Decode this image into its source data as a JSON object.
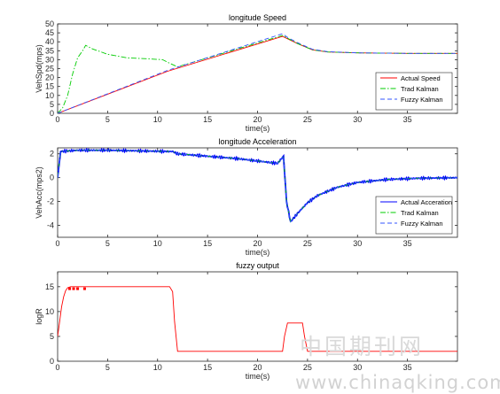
{
  "chart_data": [
    {
      "type": "line",
      "title": "longitude Speed",
      "xlabel": "time(s)",
      "ylabel": "VehSpd(mps)",
      "xlim": [
        0,
        40
      ],
      "ylim": [
        0,
        50
      ],
      "xticks": [
        0,
        5,
        10,
        15,
        20,
        25,
        30,
        35
      ],
      "yticks": [
        0,
        5,
        10,
        15,
        20,
        25,
        30,
        35,
        40,
        45,
        50
      ],
      "legend_position": "bottom-right",
      "grid": false,
      "series": [
        {
          "name": "Actual Speed",
          "color": "#ff0000",
          "style": "solid",
          "x": [
            0,
            11,
            22.5,
            24,
            25.5,
            27,
            30,
            35,
            40
          ],
          "y": [
            0,
            23.5,
            43,
            39,
            35.5,
            34.3,
            33.8,
            33.5,
            33.5
          ]
        },
        {
          "name": "Trad Kalman",
          "color": "#00cc00",
          "style": "dashdot",
          "x": [
            0,
            0.5,
            1,
            1.5,
            2,
            2.5,
            2.8,
            3.5,
            5,
            7,
            9,
            10.5,
            11.2,
            12,
            22.5,
            24,
            25.5,
            27,
            30,
            35,
            40
          ],
          "y": [
            0,
            3,
            10,
            22,
            31,
            35,
            38,
            36,
            33,
            31,
            30.5,
            30,
            28,
            26,
            43.5,
            39,
            35.5,
            34.3,
            33.8,
            33.5,
            33.5
          ]
        },
        {
          "name": "Fuzzy Kalman",
          "color": "#3355ff",
          "style": "dashed",
          "x": [
            0,
            11,
            22.5,
            23,
            24,
            25.5,
            27,
            30,
            35,
            40
          ],
          "y": [
            0,
            24,
            44.5,
            42.5,
            39.5,
            35.8,
            34.5,
            33.8,
            33.5,
            33.5
          ]
        }
      ]
    },
    {
      "type": "line",
      "title": "longitude Acceleration",
      "xlabel": "time(s)",
      "ylabel": "VehAcc(mps2)",
      "xlim": [
        0,
        40
      ],
      "ylim": [
        -5,
        2.5
      ],
      "xticks": [
        0,
        5,
        10,
        15,
        20,
        25,
        30,
        35
      ],
      "yticks": [
        -4,
        -2,
        0,
        2
      ],
      "legend_position": "bottom-right",
      "grid": false,
      "series": [
        {
          "name": "Actual Acceration",
          "color": "#0000ff",
          "style": "solid",
          "x": [
            0,
            0.3,
            2,
            5,
            8,
            11,
            11.5,
            12,
            15,
            18,
            20,
            22,
            22.6,
            22.9,
            23.3,
            24,
            25,
            26,
            28,
            30,
            33,
            36,
            40
          ],
          "y": [
            0,
            2.2,
            2.3,
            2.3,
            2.25,
            2.2,
            2.2,
            2.0,
            1.8,
            1.6,
            1.4,
            1.2,
            1.8,
            -2,
            -3.7,
            -3.0,
            -2.1,
            -1.5,
            -0.8,
            -0.4,
            -0.15,
            -0.05,
            0
          ]
        },
        {
          "name": "Trad Kalman",
          "color": "#00cc00",
          "style": "dashdot",
          "x": [
            0,
            0.3,
            2,
            5,
            8,
            11,
            11.5,
            12,
            15,
            18,
            20,
            22,
            22.6,
            22.9,
            23.3,
            24,
            25,
            26,
            28,
            30,
            33,
            36,
            40
          ],
          "y": [
            0,
            2.2,
            2.3,
            2.3,
            2.25,
            2.2,
            2.2,
            2.0,
            1.8,
            1.6,
            1.4,
            1.2,
            1.8,
            -2,
            -3.7,
            -3.0,
            -2.1,
            -1.5,
            -0.8,
            -0.4,
            -0.15,
            -0.05,
            0
          ]
        },
        {
          "name": "Fuzzy Kalman",
          "color": "#3355ff",
          "style": "dashed",
          "x": [
            0,
            0.3,
            2,
            5,
            8,
            11,
            11.5,
            12,
            15,
            18,
            20,
            22,
            22.6,
            22.9,
            23.3,
            24,
            25,
            26,
            28,
            30,
            33,
            36,
            40
          ],
          "y": [
            0,
            2.2,
            2.3,
            2.3,
            2.25,
            2.2,
            2.2,
            2.0,
            1.8,
            1.6,
            1.4,
            1.2,
            1.8,
            -2,
            -3.7,
            -3.0,
            -2.1,
            -1.5,
            -0.8,
            -0.4,
            -0.15,
            -0.05,
            0
          ]
        }
      ]
    },
    {
      "type": "line",
      "title": "fuzzy output",
      "xlabel": "time(s)",
      "ylabel": "logR",
      "xlim": [
        0,
        40
      ],
      "ylim": [
        0,
        18
      ],
      "xticks": [
        0,
        5,
        10,
        15,
        20,
        25,
        30,
        35
      ],
      "yticks": [
        0,
        5,
        10,
        15
      ],
      "grid": false,
      "series": [
        {
          "color": "#ff0000",
          "style": "solid",
          "x": [
            0,
            0.2,
            0.4,
            0.6,
            0.8,
            1.0,
            1.3,
            11.2,
            11.5,
            11.7,
            12,
            22.5,
            22.7,
            23,
            24.5,
            24.7,
            25,
            40
          ],
          "y": [
            5,
            8,
            11,
            13,
            14.2,
            14.8,
            15,
            15,
            14,
            8,
            2,
            2,
            5,
            7.7,
            7.7,
            5,
            2,
            2
          ]
        }
      ],
      "markers": {
        "color": "#ff0000",
        "x": [
          1.2,
          1.6,
          2.0,
          2.7
        ],
        "y": [
          14.6,
          14.6,
          14.6,
          14.6
        ]
      }
    }
  ],
  "watermark": {
    "line1": "中国期刊网",
    "line2": "www.chinaqking.com"
  }
}
